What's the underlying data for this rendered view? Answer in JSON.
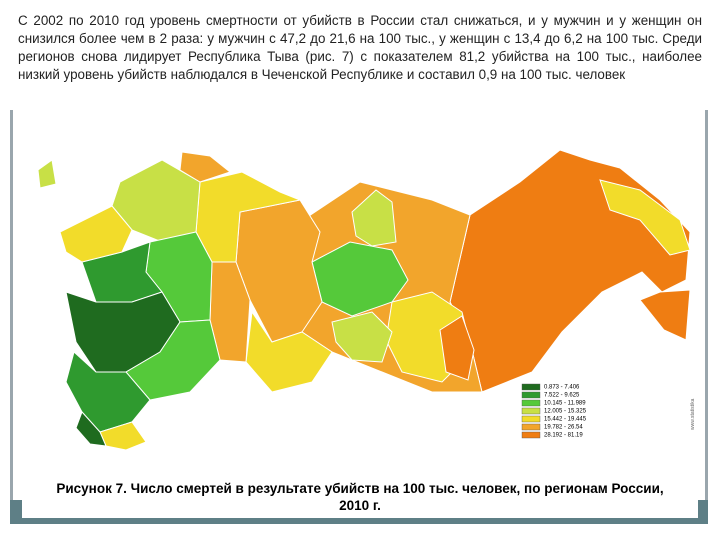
{
  "text": "С 2002 по 2010 год уровень смертности от убийств в России стал снижаться, и у мужчин и у женщин он снизился более чем в 2 раза: у мужчин с 47,2 до 21,6 на 100 тыс., у женщин с 13,4 до 6,2 на 100 тыс. Среди регионов снова лидирует Республика Тыва (рис. 7) с показателем 81,2 убийства на 100 тыс., наиболее низкий уровень убийств наблюдался в Чеченской Республике и составил 0,9 на 100 тыс. человек",
  "map": {
    "legend": [
      {
        "label": "0.873 - 7.406",
        "color": "#1f6b1f"
      },
      {
        "label": "7.522 - 9.625",
        "color": "#2f9a2f"
      },
      {
        "label": "10.145 - 11.989",
        "color": "#55c93a"
      },
      {
        "label": "12.005 - 15.325",
        "color": "#c8e046"
      },
      {
        "label": "15.442 - 19.445",
        "color": "#f2dc2a"
      },
      {
        "label": "19.782 - 26.54",
        "color": "#f2a52c"
      },
      {
        "label": "28.192 - 81.19",
        "color": "#ef7d12"
      }
    ]
  },
  "caption": "Рисунок 7. Число смертей в результате убийств на 100 тыс. человек, по регионам России, 2010 г."
}
